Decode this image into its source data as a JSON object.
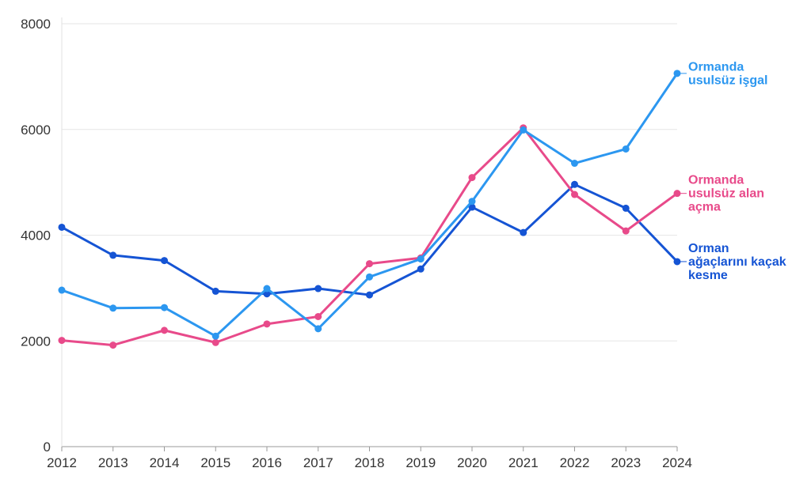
{
  "chart_data": {
    "type": "line",
    "title": "",
    "xlabel": "",
    "ylabel": "",
    "x": [
      2012,
      2013,
      2014,
      2015,
      2016,
      2017,
      2018,
      2019,
      2020,
      2021,
      2022,
      2023,
      2024
    ],
    "x_tick_labels": [
      "2012",
      "2013",
      "2014",
      "2015",
      "2016",
      "2017",
      "2018",
      "2019",
      "2020",
      "2021",
      "2022",
      "2023",
      "2024"
    ],
    "ylim": [
      0,
      8000
    ],
    "y_ticks": [
      0,
      2000,
      4000,
      6000,
      8000
    ],
    "y_tick_labels": [
      "0",
      "2000",
      "4000",
      "6000",
      "8000"
    ],
    "grid": "horizontal",
    "legend": "direct labels at right end of each line",
    "series": [
      {
        "name": "Orman ağaçlarını kaçak kesme",
        "label_lines": [
          "Orman",
          "ağaçlarını kaçak",
          "kesme"
        ],
        "color": "#1554d4",
        "values": [
          4150,
          3620,
          3520,
          2940,
          2890,
          2990,
          2870,
          3360,
          4530,
          4050,
          4960,
          4510,
          3500
        ]
      },
      {
        "name": "Ormanda usulsüz alan açma",
        "label_lines": [
          "Ormanda",
          "usulsüz alan",
          "açma"
        ],
        "color": "#e84a8a",
        "values": [
          2010,
          1920,
          2200,
          1970,
          2320,
          2460,
          3460,
          3570,
          5090,
          6030,
          4770,
          4080,
          4790
        ]
      },
      {
        "name": "Ormanda usulsüz işgal",
        "label_lines": [
          "Ormanda",
          "usulsüz işgal"
        ],
        "color": "#2c97f0",
        "values": [
          2960,
          2620,
          2630,
          2090,
          2990,
          2230,
          3210,
          3550,
          4640,
          5990,
          5360,
          5630,
          7060
        ]
      }
    ]
  }
}
